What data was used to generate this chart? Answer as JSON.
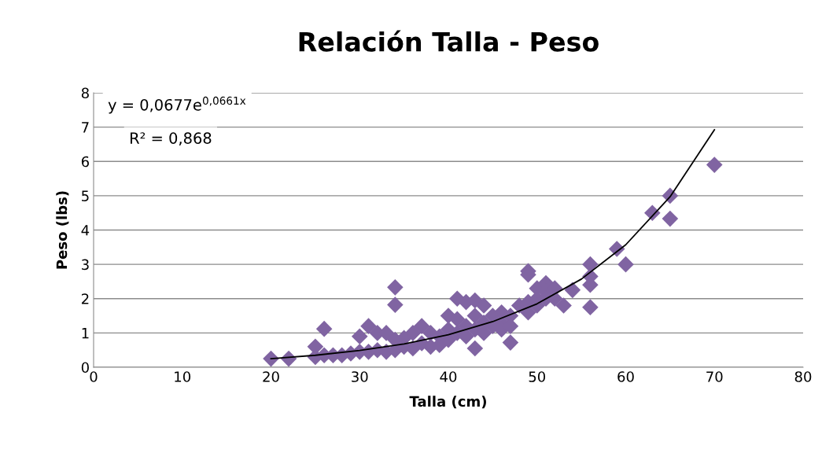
{
  "chart_data": {
    "type": "scatter",
    "title": "Relación Talla - Peso",
    "xlabel": "Talla (cm)",
    "ylabel": "Peso (lbs)",
    "xlim": [
      0,
      80
    ],
    "xticks": [
      0,
      10,
      20,
      30,
      40,
      50,
      60,
      70,
      80
    ],
    "ylim": [
      0,
      8
    ],
    "yticks": [
      0,
      1,
      2,
      3,
      4,
      5,
      6,
      7,
      8
    ],
    "grid": "y",
    "legend": false,
    "annotations": [
      "y = 0,0677e$^{0,0661x}$",
      "R² = 0,868"
    ],
    "series": [
      {
        "marker": "diamond",
        "color": "#8064a2",
        "x": [
          20,
          22,
          25,
          25,
          26,
          26,
          27,
          28,
          29,
          30,
          30,
          31,
          31,
          32,
          32,
          33,
          33,
          34,
          34,
          34,
          34,
          35,
          35,
          36,
          36,
          37,
          37,
          38,
          38,
          39,
          39,
          40,
          40,
          40,
          41,
          41,
          41,
          42,
          42,
          42,
          43,
          43,
          43,
          43,
          44,
          44,
          44,
          45,
          45,
          46,
          46,
          46,
          47,
          47,
          47,
          48,
          49,
          49,
          49,
          49,
          50,
          50,
          50,
          51,
          51,
          51,
          52,
          52,
          53,
          54,
          56,
          56,
          56,
          56,
          59,
          60,
          63,
          65,
          65,
          70
        ],
        "values": [
          0.25,
          0.25,
          0.6,
          0.3,
          1.12,
          0.35,
          0.35,
          0.35,
          0.4,
          0.9,
          0.45,
          1.2,
          0.45,
          1.0,
          0.5,
          1.0,
          0.45,
          2.33,
          1.82,
          0.8,
          0.5,
          0.85,
          0.6,
          1.0,
          0.55,
          1.2,
          0.7,
          1.0,
          0.6,
          0.9,
          0.65,
          1.5,
          1.1,
          0.8,
          2.0,
          1.4,
          1.0,
          1.9,
          1.2,
          0.9,
          1.95,
          1.5,
          0.55,
          1.1,
          1.8,
          1.3,
          1.0,
          1.5,
          1.2,
          1.6,
          1.3,
          1.1,
          1.5,
          1.2,
          0.72,
          1.8,
          2.8,
          2.7,
          1.9,
          1.6,
          2.3,
          2.0,
          1.8,
          2.45,
          2.2,
          2.0,
          2.3,
          2.0,
          1.8,
          2.25,
          3.0,
          2.65,
          2.4,
          1.75,
          3.45,
          3.0,
          4.5,
          5.0,
          4.33,
          5.9
        ]
      },
      {
        "type": "line",
        "marker": "none",
        "color": "#000000",
        "x": [
          20,
          25,
          30,
          35,
          40,
          45,
          50,
          55,
          60,
          65,
          70
        ],
        "values": [
          0.25,
          0.35,
          0.49,
          0.68,
          0.95,
          1.33,
          1.85,
          2.57,
          3.57,
          4.97,
          6.92
        ]
      }
    ]
  }
}
